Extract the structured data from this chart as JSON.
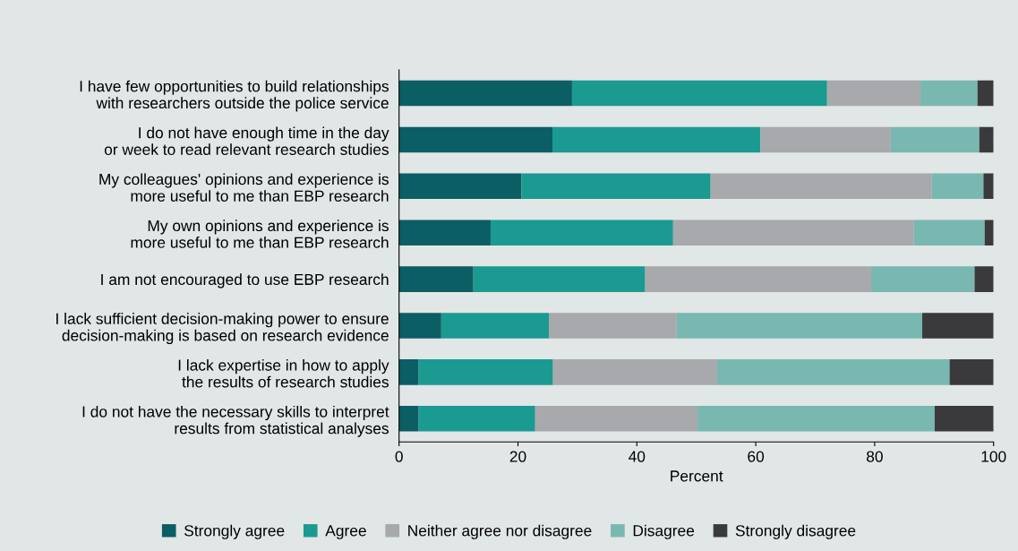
{
  "chart_data": {
    "type": "bar",
    "orientation": "horizontal",
    "stacked": true,
    "xlabel": "Percent",
    "categories": [
      "I have few opportunities to build relationships\nwith researchers outside the police service",
      "I do not have enough time in the day\nor week to read relevant research studies",
      "My colleagues' opinions and experience is\nmore useful to me than EBP research",
      "My own opinions and experience is\nmore useful to me than EBP research",
      "I am not encouraged to use EBP research",
      "I lack sufficient decision-making power to ensure\ndecision-making is based on research evidence",
      "I lack expertise in how to apply\nthe results of research studies",
      "I do not have the necessary skills to interpret\nresults from statistical analyses"
    ],
    "series": [
      {
        "name": "Strongly agree",
        "color": "#0b5e63",
        "values": [
          29.1,
          25.8,
          20.6,
          15.4,
          12.5,
          7.1,
          3.3,
          3.3
        ]
      },
      {
        "name": "Agree",
        "color": "#1b9a91",
        "values": [
          42.9,
          35.0,
          31.8,
          30.7,
          28.9,
          18.1,
          22.6,
          19.6
        ]
      },
      {
        "name": "Neither agree nor disagree",
        "color": "#a7a9ac",
        "values": [
          15.7,
          21.9,
          37.2,
          40.5,
          38.0,
          21.5,
          27.6,
          27.3
        ]
      },
      {
        "name": "Disagree",
        "color": "#79b8b0",
        "values": [
          9.6,
          14.9,
          8.7,
          11.9,
          17.4,
          41.3,
          39.1,
          39.9
        ]
      },
      {
        "name": "Strongly disagree",
        "color": "#3a3a3c",
        "values": [
          2.7,
          2.4,
          1.7,
          1.5,
          3.2,
          12.0,
          7.4,
          9.9
        ]
      }
    ],
    "xlim": [
      0,
      100
    ],
    "xticks": [
      0,
      20,
      40,
      60,
      80,
      100
    ],
    "grid": false,
    "legend": "bottom"
  }
}
